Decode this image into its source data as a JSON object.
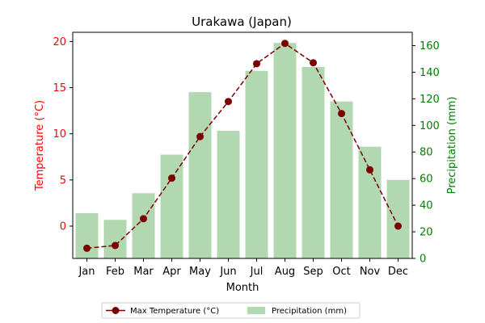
{
  "chart_data": {
    "type": "bar",
    "title": "Urakawa (Japan)",
    "xlabel": "Month",
    "ylabel_left": "Temperature (°C)",
    "ylabel_right": "Precipitation (mm)",
    "categories": [
      "Jan",
      "Feb",
      "Mar",
      "Apr",
      "May",
      "Jun",
      "Jul",
      "Aug",
      "Sep",
      "Oct",
      "Nov",
      "Dec"
    ],
    "left_axis": {
      "ylim": [
        -3.5,
        21.0
      ],
      "ticks": [
        0,
        5,
        10,
        15,
        20
      ],
      "tick_labels": [
        "0",
        "5",
        "10",
        "15",
        "20"
      ],
      "color": "#ff0000"
    },
    "right_axis": {
      "ylim": [
        0,
        170
      ],
      "ticks": [
        0,
        20,
        40,
        60,
        80,
        100,
        120,
        140,
        160
      ],
      "tick_labels": [
        "0",
        "20",
        "40",
        "60",
        "80",
        "100",
        "120",
        "140",
        "160"
      ],
      "color": "#008000"
    },
    "series": [
      {
        "name": "Precipitation (mm)",
        "kind": "bar",
        "axis": "right",
        "color": "#b1d8b1",
        "values": [
          34,
          29,
          49,
          78,
          125,
          96,
          141,
          162,
          144,
          118,
          84,
          59
        ]
      },
      {
        "name": "Max Temperature (°C)",
        "kind": "line",
        "axis": "left",
        "color": "#7b0000",
        "style": "dashed",
        "marker": "circle",
        "values": [
          -2.4,
          -2.1,
          0.8,
          5.2,
          9.7,
          13.5,
          17.6,
          19.8,
          17.7,
          12.2,
          6.1,
          0.0
        ]
      }
    ],
    "legend": {
      "placement": "bottom-center",
      "columns": 2
    },
    "grid": false
  }
}
